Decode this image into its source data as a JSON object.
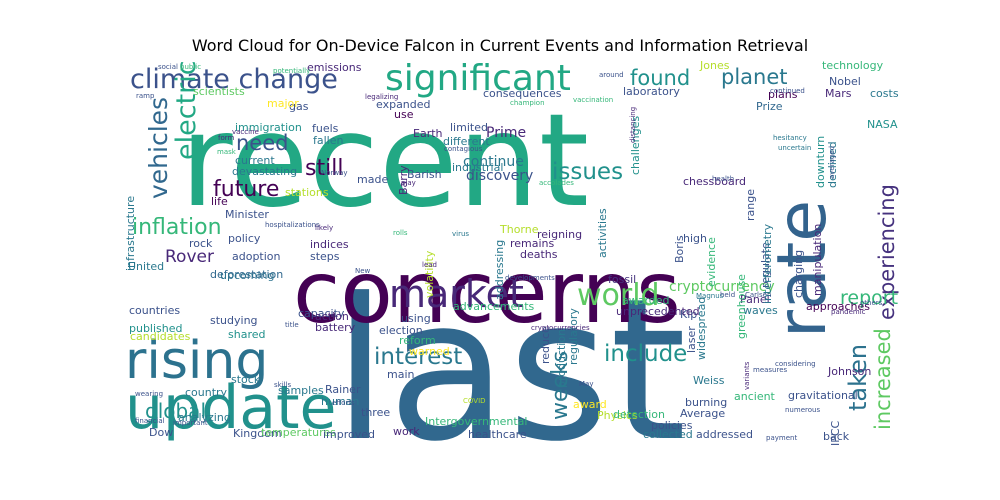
{
  "title": "Word Cloud for On-Device Falcon in Current Events and Information Retrieval",
  "words": [
    {
      "text": "recent",
      "color": "#22a884"
    },
    {
      "text": "last",
      "color": "#31688e"
    },
    {
      "text": "concerns",
      "color": "#440154"
    },
    {
      "text": "update",
      "color": "#21918c"
    },
    {
      "text": "rising",
      "color": "#2c728e"
    },
    {
      "text": "due",
      "color": "#fde725"
    },
    {
      "text": "significant",
      "color": "#22a884"
    },
    {
      "text": "climate change",
      "color": "#3b528b"
    },
    {
      "text": "market",
      "color": "#482878"
    },
    {
      "text": "rate",
      "color": "#33638d"
    },
    {
      "text": "world",
      "color": "#5ec962"
    },
    {
      "text": "interest",
      "color": "#2a788e"
    },
    {
      "text": "include",
      "color": "#21918c"
    },
    {
      "text": "electric",
      "color": "#22a884"
    },
    {
      "text": "vehicles",
      "color": "#31688e"
    },
    {
      "text": "inflation",
      "color": "#35b779"
    },
    {
      "text": "future",
      "color": "#440154"
    },
    {
      "text": "found",
      "color": "#21918c"
    },
    {
      "text": "planet",
      "color": "#2a788e"
    },
    {
      "text": "need",
      "color": "#3b528b"
    },
    {
      "text": "still",
      "color": "#440154"
    },
    {
      "text": "issues",
      "color": "#21918c"
    },
    {
      "text": "experiencing",
      "color": "#46327e"
    },
    {
      "text": "increased",
      "color": "#5ec962"
    },
    {
      "text": "taken",
      "color": "#2c728e"
    },
    {
      "text": "report",
      "color": "#35b779"
    },
    {
      "text": "weeks",
      "color": "#2a788e"
    },
    {
      "text": "global",
      "color": "#21918c"
    },
    {
      "text": "Rover",
      "color": "#482878"
    },
    {
      "text": "cryptocurrency",
      "color": "#5ec962"
    },
    {
      "text": "continue",
      "color": "#2a788e"
    },
    {
      "text": "discovery",
      "color": "#3b528b"
    },
    {
      "text": "Prime",
      "color": "#482878"
    },
    {
      "text": "Minister",
      "color": "#3b528b"
    },
    {
      "text": "deforestation",
      "color": "#31688e"
    },
    {
      "text": "technology",
      "color": "#35b779"
    },
    {
      "text": "Nobel",
      "color": "#3b528b"
    },
    {
      "text": "Mars",
      "color": "#482878"
    },
    {
      "text": "Prize",
      "color": "#31688e"
    },
    {
      "text": "plans",
      "color": "#440154"
    },
    {
      "text": "costs",
      "color": "#2a788e"
    },
    {
      "text": "NASA",
      "color": "#21918c"
    },
    {
      "text": "laboratory",
      "color": "#3b528b"
    },
    {
      "text": "consequences",
      "color": "#3b528b"
    },
    {
      "text": "Jones",
      "color": "#b5de2b"
    },
    {
      "text": "scientists",
      "color": "#5ec962"
    },
    {
      "text": "gas",
      "color": "#3b528b"
    },
    {
      "text": "major",
      "color": "#fde725"
    },
    {
      "text": "emissions",
      "color": "#482878"
    },
    {
      "text": "immigration",
      "color": "#21918c"
    },
    {
      "text": "fuels",
      "color": "#3b528b"
    },
    {
      "text": "fallen",
      "color": "#2a788e"
    },
    {
      "text": "Earth",
      "color": "#482878"
    },
    {
      "text": "limited",
      "color": "#3b528b"
    },
    {
      "text": "different",
      "color": "#2a788e"
    },
    {
      "text": "industrial",
      "color": "#2a788e"
    },
    {
      "text": "expanded",
      "color": "#3b528b"
    },
    {
      "text": "use",
      "color": "#440154"
    },
    {
      "text": "Barish",
      "color": "#3b528b"
    },
    {
      "text": "challenges",
      "color": "#21918c"
    },
    {
      "text": "range",
      "color": "#3b528b"
    },
    {
      "text": "downturn",
      "color": "#21918c"
    },
    {
      "text": "declined",
      "color": "#2a788e"
    },
    {
      "text": "current",
      "color": "#2a788e"
    },
    {
      "text": "devastating",
      "color": "#2a788e"
    },
    {
      "text": "stations",
      "color": "#b5de2b"
    },
    {
      "text": "life",
      "color": "#440154"
    },
    {
      "text": "policy",
      "color": "#3b528b"
    },
    {
      "text": "adoption",
      "color": "#3b528b"
    },
    {
      "text": "rock",
      "color": "#3b528b"
    },
    {
      "text": "United",
      "color": "#2a788e"
    },
    {
      "text": "indices",
      "color": "#482878"
    },
    {
      "text": "steps",
      "color": "#3b528b"
    },
    {
      "text": "upcoming",
      "color": "#2c728e"
    },
    {
      "text": "fossil",
      "color": "#46327e"
    },
    {
      "text": "Boris",
      "color": "#3b528b"
    },
    {
      "text": "high",
      "color": "#3b528b"
    },
    {
      "text": "regulate",
      "color": "#3b528b"
    },
    {
      "text": "charging",
      "color": "#3b528b"
    },
    {
      "text": "approaches",
      "color": "#440154"
    },
    {
      "text": "Panel",
      "color": "#482878"
    },
    {
      "text": "waves",
      "color": "#2a788e"
    },
    {
      "text": "Kip",
      "color": "#3b528b"
    },
    {
      "text": "unprecedented",
      "color": "#482878"
    },
    {
      "text": "awarded",
      "color": "#35b779"
    },
    {
      "text": "advancements",
      "color": "#35b779"
    },
    {
      "text": "capacity",
      "color": "#3b528b"
    },
    {
      "text": "action",
      "color": "#482878"
    },
    {
      "text": "battery",
      "color": "#482878"
    },
    {
      "text": "election",
      "color": "#3b528b"
    },
    {
      "text": "reform",
      "color": "#35b779"
    },
    {
      "text": "warned",
      "color": "#fde725"
    },
    {
      "text": "using",
      "color": "#3b528b"
    },
    {
      "text": "countries",
      "color": "#3b528b"
    },
    {
      "text": "published",
      "color": "#21918c"
    },
    {
      "text": "studying",
      "color": "#3b528b"
    },
    {
      "text": "candidates",
      "color": "#b5de2b"
    },
    {
      "text": "shared",
      "color": "#21918c"
    },
    {
      "text": "country",
      "color": "#2a788e"
    },
    {
      "text": "stock",
      "color": "#2a788e"
    },
    {
      "text": "samples",
      "color": "#2a788e"
    },
    {
      "text": "Rainer",
      "color": "#3b528b"
    },
    {
      "text": "human",
      "color": "#2a788e"
    },
    {
      "text": "three",
      "color": "#3b528b"
    },
    {
      "text": "analyzing",
      "color": "#2a788e"
    },
    {
      "text": "Dow",
      "color": "#3b528b"
    },
    {
      "text": "Kingdom",
      "color": "#3b528b"
    },
    {
      "text": "temperatures",
      "color": "#5ec962"
    },
    {
      "text": "improved",
      "color": "#3b528b"
    },
    {
      "text": "work",
      "color": "#482878"
    },
    {
      "text": "Intergovernmental",
      "color": "#35b779"
    },
    {
      "text": "healthcare",
      "color": "#3b528b"
    },
    {
      "text": "collected",
      "color": "#2a788e"
    },
    {
      "text": "addressed",
      "color": "#3b528b"
    },
    {
      "text": "policies",
      "color": "#3b528b"
    },
    {
      "text": "Average",
      "color": "#3b528b"
    },
    {
      "text": "burning",
      "color": "#3b528b"
    },
    {
      "text": "Weiss",
      "color": "#2a788e"
    },
    {
      "text": "laser",
      "color": "#3b528b"
    },
    {
      "text": "award",
      "color": "#fde725"
    },
    {
      "text": "Physics",
      "color": "#b5de2b"
    },
    {
      "text": "detection",
      "color": "#35b779"
    },
    {
      "text": "main",
      "color": "#3b528b"
    },
    {
      "text": "ancient",
      "color": "#35b779"
    },
    {
      "text": "greenhouse",
      "color": "#35b779"
    },
    {
      "text": "gravitational",
      "color": "#3b528b"
    },
    {
      "text": "IPCC",
      "color": "#3b528b"
    },
    {
      "text": "back",
      "color": "#3b528b"
    },
    {
      "text": "Johnson",
      "color": "#482878"
    },
    {
      "text": "interferometry",
      "color": "#2a788e"
    },
    {
      "text": "evidence",
      "color": "#35b779"
    },
    {
      "text": "widespread",
      "color": "#2a788e"
    },
    {
      "text": "manipulation",
      "color": "#482878"
    },
    {
      "text": "chessboard",
      "color": "#482878"
    },
    {
      "text": "infrastructure",
      "color": "#2a788e"
    },
    {
      "text": "production",
      "color": "#2a788e"
    },
    {
      "text": "volatility",
      "color": "#b5de2b"
    },
    {
      "text": "addressing",
      "color": "#2a788e"
    },
    {
      "text": "activities",
      "color": "#2a788e"
    },
    {
      "text": "reduce",
      "color": "#3b528b"
    },
    {
      "text": "regulatory",
      "color": "#2a788e"
    },
    {
      "text": "Thorne",
      "color": "#b5de2b"
    },
    {
      "text": "remains",
      "color": "#482878"
    },
    {
      "text": "deaths",
      "color": "#482878"
    },
    {
      "text": "reigning",
      "color": "#482878"
    },
    {
      "text": "Barry",
      "color": "#482878"
    },
    {
      "text": "made",
      "color": "#3b528b"
    },
    {
      "text": "public",
      "color": "#35b779"
    },
    {
      "text": "potentially",
      "color": "#35b779"
    },
    {
      "text": "ramp",
      "color": "#3b528b"
    },
    {
      "text": "legalizing",
      "color": "#482878"
    },
    {
      "text": "vaccination",
      "color": "#35b779"
    },
    {
      "text": "champion",
      "color": "#35b779"
    },
    {
      "text": "around",
      "color": "#3b528b"
    },
    {
      "text": "continued",
      "color": "#3b528b"
    },
    {
      "text": "hesitancy",
      "color": "#2a788e"
    },
    {
      "text": "uncertain",
      "color": "#2a788e"
    },
    {
      "text": "vaccine",
      "color": "#482878"
    },
    {
      "text": "form",
      "color": "#482878"
    },
    {
      "text": "mask",
      "color": "#35b779"
    },
    {
      "text": "contagious",
      "color": "#3b528b"
    },
    {
      "text": "distancing",
      "color": "#482878"
    },
    {
      "text": "Norway",
      "color": "#3b528b"
    },
    {
      "text": "play",
      "color": "#482878"
    },
    {
      "text": "accolades",
      "color": "#35b779"
    },
    {
      "text": "health",
      "color": "#3b528b"
    },
    {
      "text": "averaged",
      "color": "#3b528b"
    },
    {
      "text": "hospitalizations",
      "color": "#3b528b"
    },
    {
      "text": "likely",
      "color": "#482878"
    },
    {
      "text": "rolls",
      "color": "#35b779"
    },
    {
      "text": "virus",
      "color": "#2a788e"
    },
    {
      "text": "New",
      "color": "#3b528b"
    },
    {
      "text": "developments",
      "color": "#3b528b"
    },
    {
      "text": "lead",
      "color": "#482878"
    },
    {
      "text": "cryptocurrencies",
      "color": "#482878"
    },
    {
      "text": "Magnus",
      "color": "#2a788e"
    },
    {
      "text": "held",
      "color": "#3b528b"
    },
    {
      "text": "Carlsen",
      "color": "#3b528b"
    },
    {
      "text": "others",
      "color": "#3b528b"
    },
    {
      "text": "pandemic",
      "color": "#482878"
    },
    {
      "text": "title",
      "color": "#3b528b"
    },
    {
      "text": "COVID",
      "color": "#b5de2b"
    },
    {
      "text": "May",
      "color": "#3b528b"
    },
    {
      "text": "skills",
      "color": "#3b528b"
    },
    {
      "text": "efforts",
      "color": "#3b528b"
    },
    {
      "text": "wearing",
      "color": "#3b528b"
    },
    {
      "text": "financial",
      "color": "#3b528b"
    },
    {
      "text": "important",
      "color": "#3b528b"
    },
    {
      "text": "numerous",
      "color": "#3b528b"
    },
    {
      "text": "payment",
      "color": "#3b528b"
    },
    {
      "text": "variants",
      "color": "#482878"
    },
    {
      "text": "measures",
      "color": "#3b528b"
    },
    {
      "text": "considering",
      "color": "#3b528b"
    },
    {
      "text": "social",
      "color": "#3b528b"
    },
    {
      "text": "gon",
      "color": "#3b528b"
    },
    {
      "text": "chess",
      "color": "#3b528b"
    }
  ]
}
